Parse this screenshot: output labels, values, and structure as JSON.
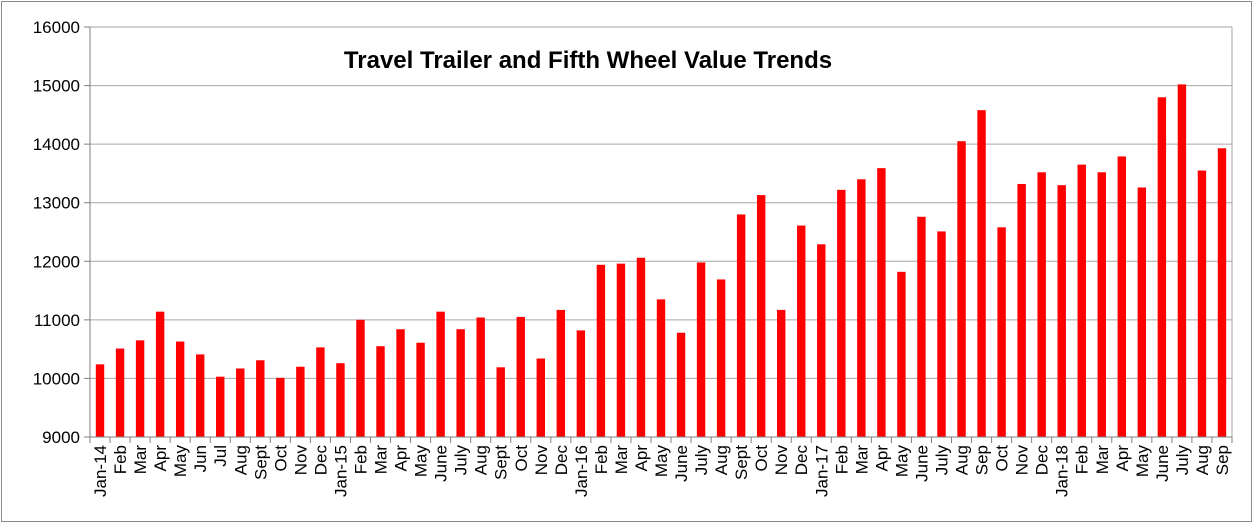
{
  "chart_data": {
    "type": "bar",
    "title": "Travel Trailer and Fifth Wheel Value Trends",
    "xlabel": "",
    "ylabel": "",
    "ylim": [
      9000,
      16000
    ],
    "yticks": [
      9000,
      10000,
      11000,
      12000,
      13000,
      14000,
      15000,
      16000
    ],
    "grid": true,
    "legend": "none",
    "bar_color": "#ff0000",
    "categories": [
      "Jan-14",
      "Feb",
      "Mar",
      "Apr",
      "May",
      "Jun",
      "Jul",
      "Aug",
      "Sept",
      "Oct",
      "Nov",
      "Dec",
      "Jan-15",
      "Feb",
      "Mar",
      "Apr",
      "May",
      "June",
      "July",
      "Aug",
      "Sept",
      "Oct",
      "Nov",
      "Dec",
      "Jan-16",
      "Feb",
      "Mar",
      "Apr",
      "May",
      "June",
      "July",
      "Aug",
      "Sept",
      "Oct",
      "Nov",
      "Dec",
      "Jan-17",
      "Feb",
      "Mar",
      "Apr",
      "May",
      "June",
      "July",
      "Aug",
      "Sep",
      "Oct",
      "Nov",
      "Dec",
      "Jan-18",
      "Feb",
      "Mar",
      "Apr",
      "May",
      "June",
      "July",
      "Aug",
      "Sep"
    ],
    "values": [
      10240,
      10510,
      10650,
      11140,
      10630,
      10410,
      10030,
      10170,
      10310,
      10010,
      10200,
      10530,
      10260,
      11000,
      10550,
      10840,
      10610,
      11140,
      10840,
      11040,
      10190,
      11050,
      10340,
      11170,
      10820,
      11940,
      11960,
      12060,
      11350,
      10780,
      11980,
      11690,
      12800,
      13130,
      11170,
      12610,
      12290,
      13220,
      13400,
      13590,
      11820,
      12760,
      12510,
      14050,
      14580,
      12580,
      13320,
      13520,
      13300,
      13650,
      13520,
      13790,
      13260,
      14800,
      15020,
      13550,
      13930
    ]
  }
}
